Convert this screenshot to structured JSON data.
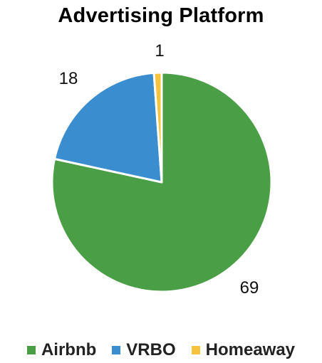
{
  "chart_data": {
    "type": "pie",
    "title": "Advertising Platform",
    "categories": [
      "Airbnb",
      "VRBO",
      "Homeaway"
    ],
    "values": [
      69,
      18,
      1
    ],
    "data_labels": [
      "69",
      "18",
      "1"
    ],
    "colors": [
      "#4A9E46",
      "#3A8ED0",
      "#F6C33E"
    ],
    "legend_position": "bottom",
    "start_angle_deg": 0,
    "direction": "clockwise"
  }
}
